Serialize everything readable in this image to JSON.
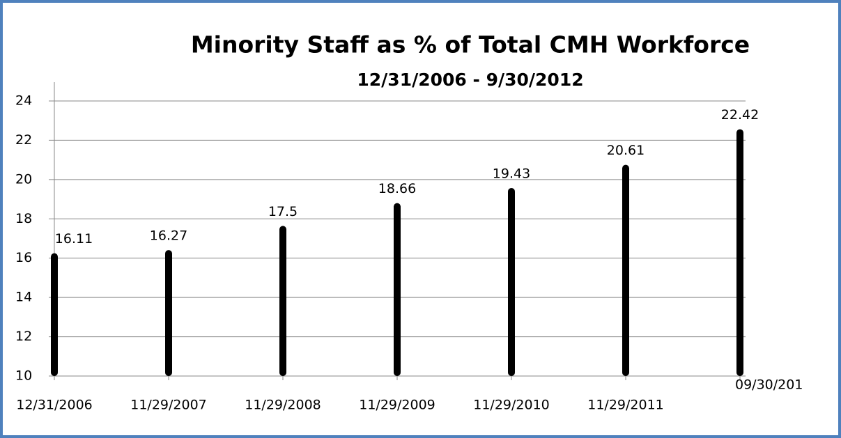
{
  "chart_data": {
    "type": "bar",
    "title": "Minority Staff as  % of Total CMH Workforce",
    "subtitle": "12/31/2006 - 9/30/2012",
    "categories": [
      "12/31/2006",
      "11/29/2007",
      "11/29/2008",
      "11/29/2009",
      "11/29/2010",
      "11/29/2011",
      "09/30/201"
    ],
    "values": [
      16.11,
      16.27,
      17.5,
      18.66,
      19.43,
      20.61,
      22.42
    ],
    "color": "#000000",
    "ylim": [
      10,
      24
    ],
    "yticks": [
      10,
      12,
      14,
      16,
      18,
      20,
      22,
      24
    ],
    "grid": true
  }
}
